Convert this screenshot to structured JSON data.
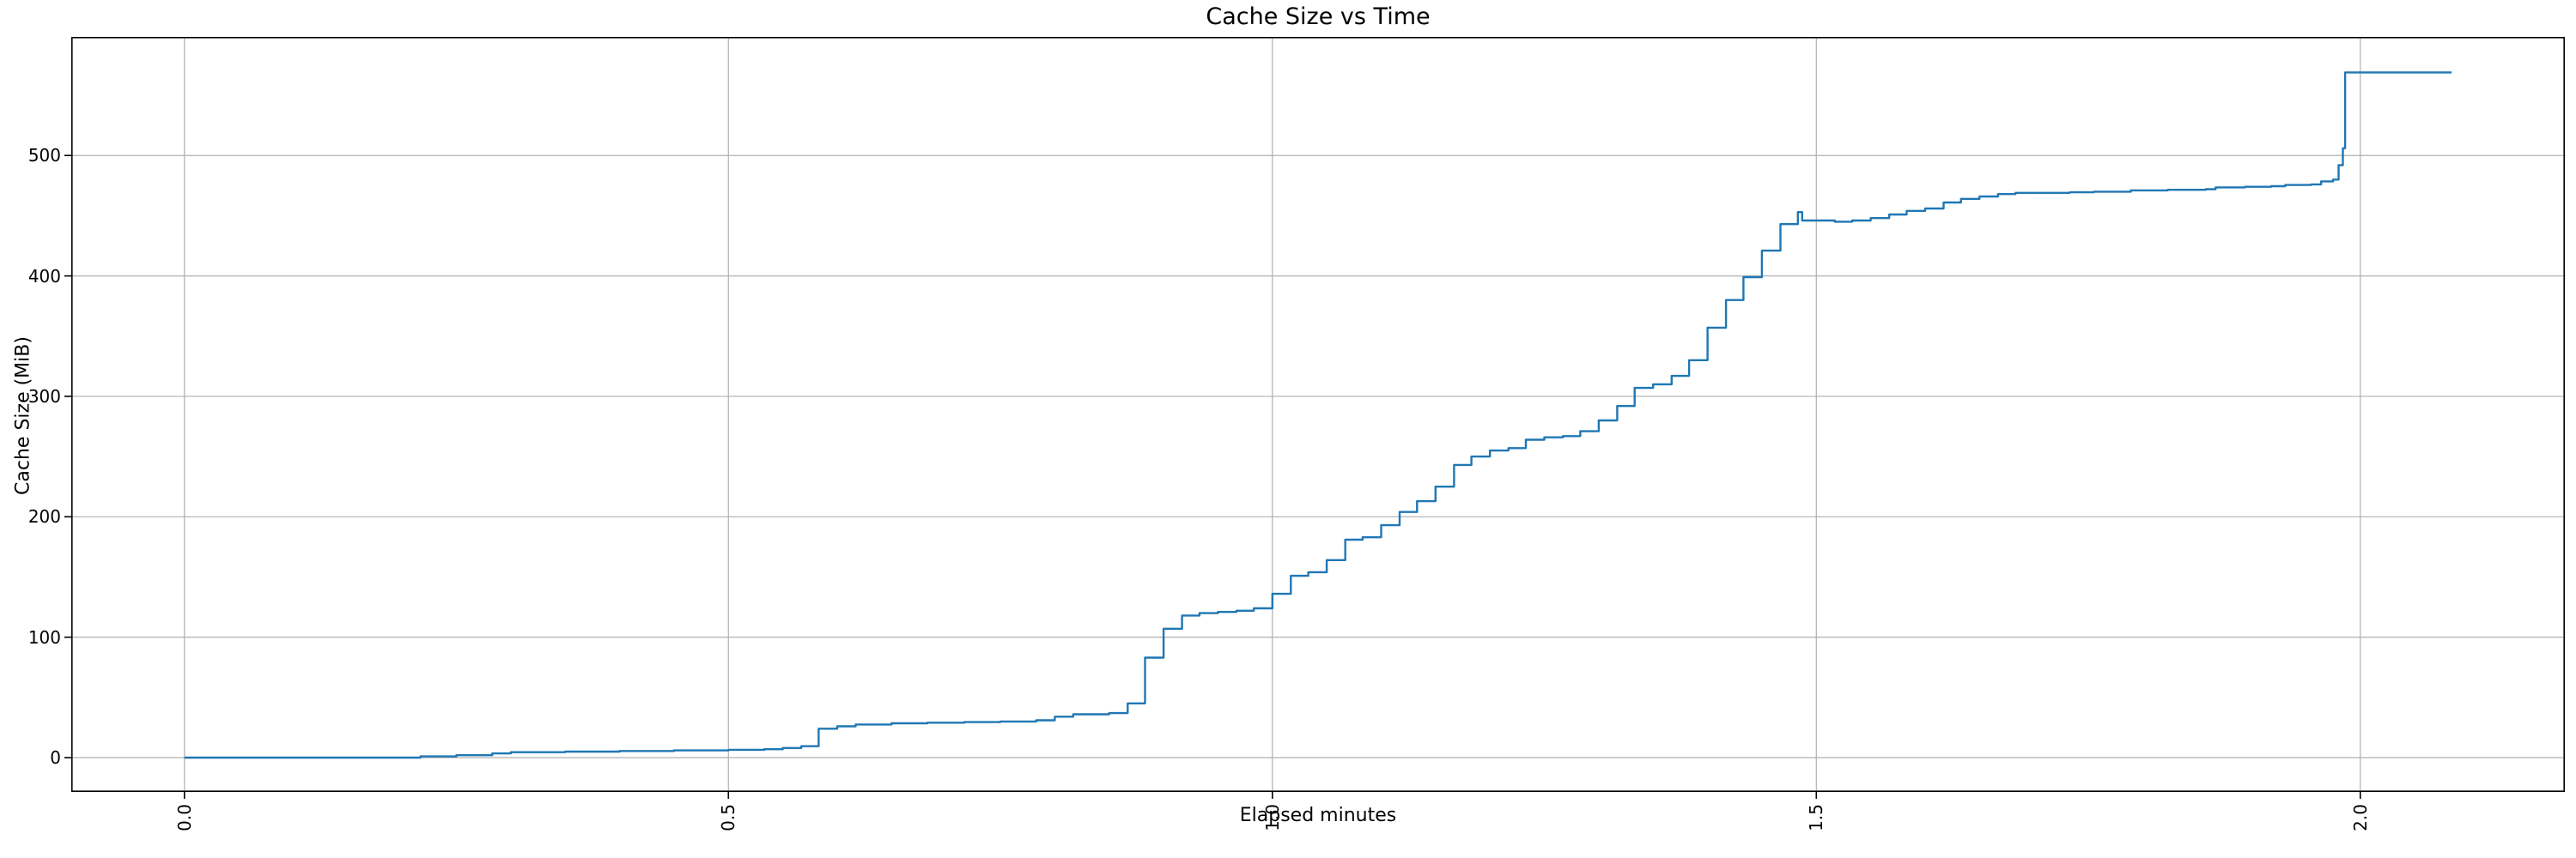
{
  "chart_data": {
    "type": "line",
    "style": "step-post",
    "title": "Cache Size vs Time",
    "xlabel": "Elapsed minutes",
    "ylabel": "Cache Size (MiB)",
    "xlim": [
      -0.104,
      2.188
    ],
    "ylim": [
      -28.5,
      598.5
    ],
    "x_ticks": [
      0.0,
      0.5,
      1.0,
      1.5,
      2.0
    ],
    "x_tick_labels": [
      "0.0",
      "0.5",
      "1.0",
      "1.5",
      "2.0"
    ],
    "y_ticks": [
      0,
      100,
      200,
      300,
      400,
      500
    ],
    "y_tick_labels": [
      "0",
      "100",
      "200",
      "300",
      "400",
      "500"
    ],
    "grid": true,
    "legend": "none",
    "line_color": "#1f77b4",
    "grid_color": "#b0b0b0",
    "spine_color": "#000000",
    "background_color": "#ffffff",
    "points": [
      [
        0.0,
        0
      ],
      [
        0.217,
        1
      ],
      [
        0.25,
        2
      ],
      [
        0.283,
        3.5
      ],
      [
        0.3,
        4.5
      ],
      [
        0.35,
        5
      ],
      [
        0.4,
        5.5
      ],
      [
        0.45,
        6
      ],
      [
        0.5,
        6.5
      ],
      [
        0.533,
        7
      ],
      [
        0.55,
        8
      ],
      [
        0.567,
        9.5
      ],
      [
        0.583,
        24
      ],
      [
        0.6,
        26
      ],
      [
        0.617,
        27.5
      ],
      [
        0.65,
        28.5
      ],
      [
        0.683,
        29
      ],
      [
        0.717,
        29.5
      ],
      [
        0.75,
        30
      ],
      [
        0.783,
        31
      ],
      [
        0.8,
        34
      ],
      [
        0.817,
        36
      ],
      [
        0.85,
        37
      ],
      [
        0.867,
        45
      ],
      [
        0.883,
        83
      ],
      [
        0.9,
        107
      ],
      [
        0.917,
        118
      ],
      [
        0.933,
        120
      ],
      [
        0.95,
        121
      ],
      [
        0.967,
        122
      ],
      [
        0.983,
        124
      ],
      [
        1.0,
        136
      ],
      [
        1.017,
        151
      ],
      [
        1.033,
        154
      ],
      [
        1.05,
        164
      ],
      [
        1.067,
        181
      ],
      [
        1.083,
        183
      ],
      [
        1.1,
        193
      ],
      [
        1.117,
        204
      ],
      [
        1.133,
        213
      ],
      [
        1.15,
        225
      ],
      [
        1.167,
        243
      ],
      [
        1.183,
        250
      ],
      [
        1.2,
        255
      ],
      [
        1.217,
        257
      ],
      [
        1.233,
        264
      ],
      [
        1.25,
        266
      ],
      [
        1.267,
        267
      ],
      [
        1.283,
        271
      ],
      [
        1.3,
        280
      ],
      [
        1.317,
        292
      ],
      [
        1.333,
        307
      ],
      [
        1.35,
        310
      ],
      [
        1.367,
        317
      ],
      [
        1.383,
        330
      ],
      [
        1.4,
        357
      ],
      [
        1.417,
        380
      ],
      [
        1.433,
        399
      ],
      [
        1.45,
        421
      ],
      [
        1.467,
        443
      ],
      [
        1.483,
        453
      ],
      [
        1.487,
        446
      ],
      [
        1.517,
        445
      ],
      [
        1.533,
        446
      ],
      [
        1.55,
        448
      ],
      [
        1.567,
        451
      ],
      [
        1.583,
        454
      ],
      [
        1.6,
        456
      ],
      [
        1.617,
        461
      ],
      [
        1.633,
        464
      ],
      [
        1.65,
        466
      ],
      [
        1.667,
        468
      ],
      [
        1.683,
        469
      ],
      [
        1.733,
        469.5
      ],
      [
        1.755,
        470
      ],
      [
        1.789,
        471
      ],
      [
        1.823,
        471.5
      ],
      [
        1.858,
        472
      ],
      [
        1.867,
        473.5
      ],
      [
        1.894,
        474
      ],
      [
        1.918,
        474.5
      ],
      [
        1.931,
        475.5
      ],
      [
        1.955,
        476
      ],
      [
        1.964,
        478.5
      ],
      [
        1.975,
        480
      ],
      [
        1.98,
        492
      ],
      [
        1.984,
        506
      ],
      [
        1.986,
        569
      ],
      [
        2.084,
        569
      ]
    ]
  }
}
